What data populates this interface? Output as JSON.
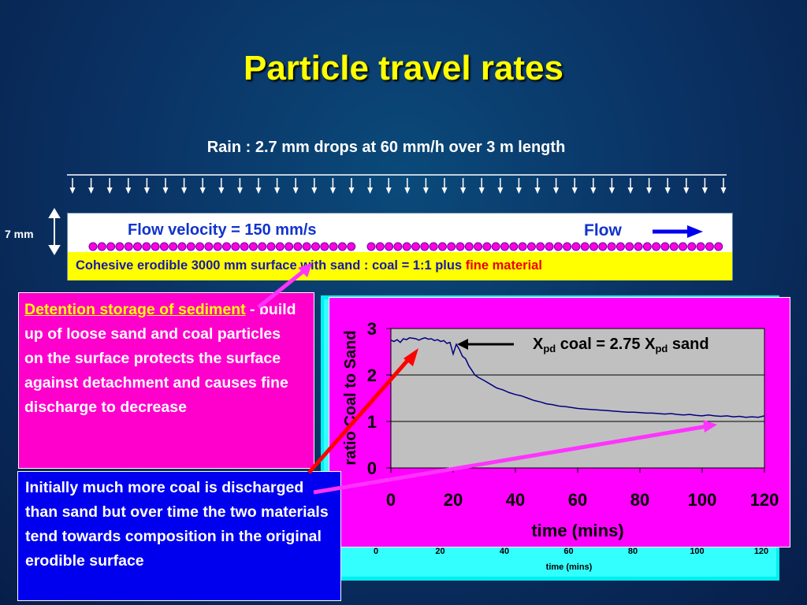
{
  "title": "Particle travel rates",
  "rain_label": "Rain : 2.7 mm drops at 60 mm/h over 3 m length",
  "depth_label": "7 mm",
  "flow_velocity": "Flow velocity = 150 mm/s",
  "flow_word": "Flow",
  "surface": {
    "text": "Cohesive erodible 3000 mm surface with sand : coal = 1:1 plus ",
    "highlight": "fine material"
  },
  "detention": {
    "heading": "Detention storage of sediment",
    "body": " - build up of loose sand and coal particles on the surface protects the surface against detachment and causes fine discharge  to decrease"
  },
  "initially": "Initially much more coal is discharged than sand but over time the two materials tend towards composition in the original erodible surface",
  "annotation": {
    "part1": "X",
    "sub1": "pd",
    "part2": " coal = 2.75 X",
    "sub2": "pd",
    "part3": " sand"
  },
  "colors": {
    "title": "#ffff00",
    "flow_text": "#1133cc",
    "surface_bg": "#ffff00",
    "detention_bg": "#ff00cc",
    "initially_bg": "#0000ee",
    "chart_bg": "#ff00ff",
    "plot_bg": "#c0c0c0",
    "line": "#000080",
    "arrow_red": "#ff0000",
    "arrow_magenta": "#ff33ff"
  },
  "under_chart": {
    "ticks": [
      "0",
      "20",
      "40",
      "60",
      "80",
      "100",
      "120"
    ],
    "xlabel": "time (mins)"
  },
  "chart_data": {
    "type": "line",
    "title": "",
    "xlabel": "time (mins)",
    "ylabel": "ratio Coal to Sand",
    "xlim": [
      0,
      120
    ],
    "ylim": [
      0,
      3
    ],
    "xticks": [
      0,
      20,
      40,
      60,
      80,
      100,
      120
    ],
    "yticks": [
      0,
      1,
      2,
      3
    ],
    "grid": "horizontal",
    "series": [
      {
        "x": [
          0,
          1,
          2,
          3,
          4,
          5,
          6,
          7,
          8,
          9,
          10,
          11,
          12,
          13,
          14,
          15,
          16,
          17,
          18,
          19,
          20,
          21,
          22,
          23,
          24,
          25,
          26,
          27,
          28,
          30,
          32,
          34,
          36,
          38,
          40,
          42,
          44,
          46,
          48,
          50,
          52,
          54,
          56,
          58,
          60,
          62,
          64,
          66,
          68,
          70,
          72,
          74,
          76,
          78,
          80,
          82,
          84,
          86,
          88,
          90,
          92,
          94,
          96,
          98,
          100,
          102,
          104,
          106,
          108,
          110,
          112,
          114,
          116,
          118,
          120
        ],
        "y": [
          2.75,
          2.72,
          2.76,
          2.7,
          2.78,
          2.76,
          2.8,
          2.79,
          2.78,
          2.75,
          2.78,
          2.8,
          2.77,
          2.78,
          2.74,
          2.76,
          2.72,
          2.74,
          2.68,
          2.7,
          2.45,
          2.66,
          2.55,
          2.4,
          2.35,
          2.2,
          2.1,
          2.0,
          1.95,
          1.88,
          1.8,
          1.72,
          1.68,
          1.62,
          1.58,
          1.55,
          1.5,
          1.45,
          1.42,
          1.38,
          1.36,
          1.33,
          1.32,
          1.3,
          1.28,
          1.27,
          1.26,
          1.25,
          1.24,
          1.23,
          1.22,
          1.21,
          1.2,
          1.2,
          1.19,
          1.18,
          1.18,
          1.17,
          1.16,
          1.17,
          1.15,
          1.14,
          1.15,
          1.13,
          1.12,
          1.14,
          1.12,
          1.11,
          1.12,
          1.1,
          1.11,
          1.09,
          1.1,
          1.09,
          1.12
        ]
      }
    ]
  }
}
